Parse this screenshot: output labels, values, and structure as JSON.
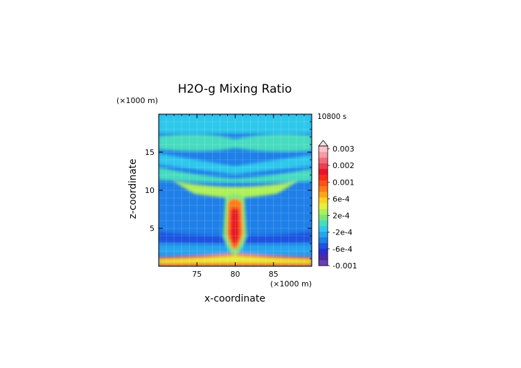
{
  "chart_data": {
    "type": "heatmap",
    "title": "H2O-g Mixing Ratio",
    "time_label": "10800 s",
    "xlabel": "x-coordinate",
    "ylabel": "z-coordinate",
    "x_unit": "(×1000 m)",
    "y_unit": "(×1000 m)",
    "xlim": [
      70,
      90
    ],
    "ylim": [
      0,
      20
    ],
    "x_ticks": [
      75,
      80,
      85
    ],
    "y_ticks": [
      5,
      10,
      15
    ],
    "grid": true,
    "colorbar": {
      "labels": [
        "0.003",
        "0.002",
        "0.001",
        "6e-4",
        "2e-4",
        "-2e-4",
        "-6e-4",
        "-0.001"
      ],
      "colors": [
        "#6a3fb2",
        "#4a2aa6",
        "#2c2fd0",
        "#1f52e0",
        "#1f7fe8",
        "#26a4ee",
        "#2fc8ec",
        "#46dcc0",
        "#78e878",
        "#aef05a",
        "#e6f03a",
        "#ffd21e",
        "#ffa41a",
        "#ff7a18",
        "#ff5214",
        "#ff2a1a",
        "#e81428",
        "#f03c4e",
        "#f46a7a",
        "#f89aa6",
        "#fbc2ca"
      ]
    }
  }
}
